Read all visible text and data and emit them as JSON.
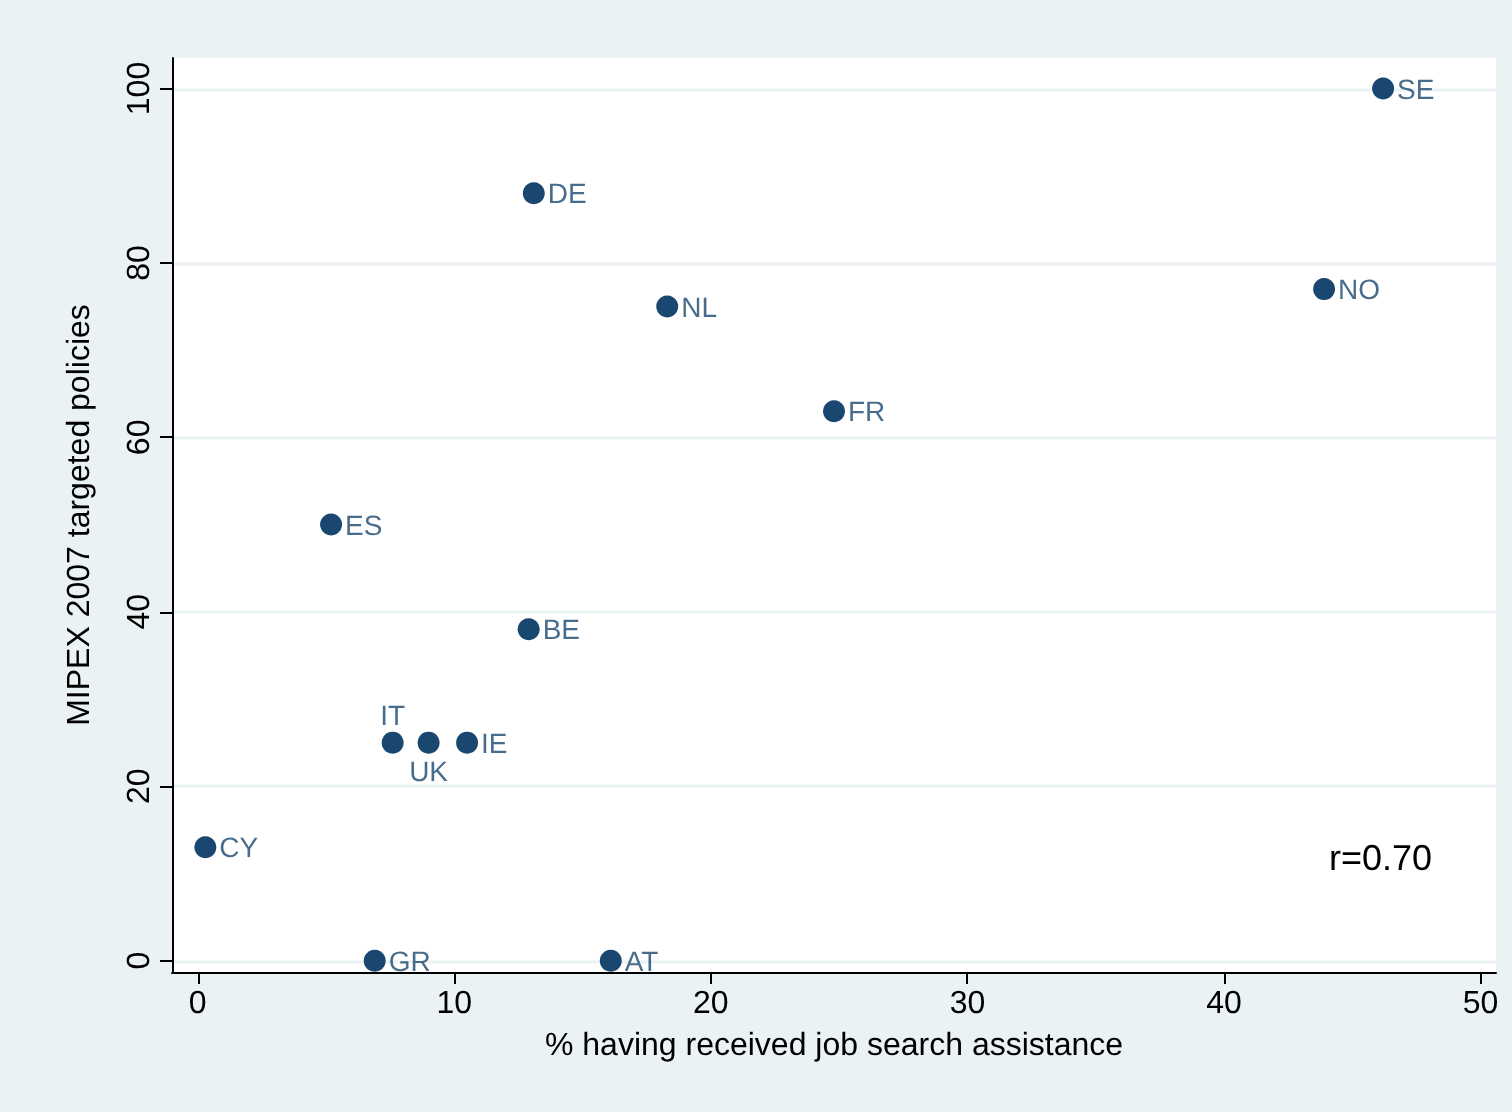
{
  "chart_data": {
    "type": "scatter",
    "xlabel": "% having received job search assistance",
    "ylabel": "MIPEX 2007 targeted policies",
    "x": [
      46.2,
      13.1,
      18.3,
      43.9,
      24.8,
      5.2,
      12.9,
      7.6,
      9.0,
      10.5,
      0.3,
      6.9,
      16.1
    ],
    "series": [
      {
        "color": "#1a476f",
        "values": [
          100,
          88,
          75,
          77,
          63,
          50,
          38,
          25,
          25,
          25,
          13,
          0,
          0
        ]
      }
    ],
    "xlim": [
      -1,
      50.6
    ],
    "ylim": [
      -1.3,
      103.5
    ],
    "xticks": [
      0,
      10,
      20,
      30,
      40,
      50
    ],
    "yticks": [
      0,
      20,
      40,
      60,
      80,
      100
    ],
    "grid": "y",
    "marker": "circle",
    "annotations": [
      {
        "text": "SE",
        "x": 46.2,
        "y": 100
      },
      {
        "text": "DE",
        "x": 13.1,
        "y": 88
      },
      {
        "text": "NL",
        "x": 18.3,
        "y": 75
      },
      {
        "text": "NO",
        "x": 43.9,
        "y": 77
      },
      {
        "text": "FR",
        "x": 24.8,
        "y": 63
      },
      {
        "text": "ES",
        "x": 5.2,
        "y": 50
      },
      {
        "text": "BE",
        "x": 12.9,
        "y": 38
      },
      {
        "text": "IT",
        "x": 7.6,
        "y": 25
      },
      {
        "text": "UK",
        "x": 9.0,
        "y": 25
      },
      {
        "text": "IE",
        "x": 10.5,
        "y": 25
      },
      {
        "text": "CY",
        "x": 0.3,
        "y": 13
      },
      {
        "text": "GR",
        "x": 6.9,
        "y": 0
      },
      {
        "text": "AT",
        "x": 16.1,
        "y": 0
      },
      "r=0.70"
    ]
  }
}
